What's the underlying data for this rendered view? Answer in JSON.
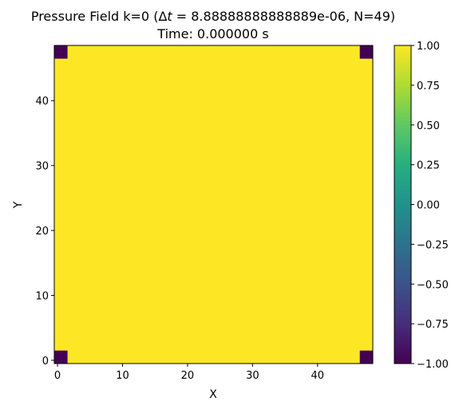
{
  "chart_data": {
    "type": "heatmap",
    "title_line1_prefix": "Pressure Field k=0 (",
    "title_line1_delta": "Δ",
    "title_line1_t": "t",
    "title_line1_suffix": " = 8.88888888888889e-06, N=49)",
    "title_line2": "Time: 0.000000 s",
    "xlabel": "X",
    "ylabel": "Y",
    "grid_n": 49,
    "xlim": [
      -0.5,
      48.5
    ],
    "ylim": [
      -0.5,
      48.5
    ],
    "xticks": [
      0,
      10,
      20,
      30,
      40
    ],
    "yticks": [
      0,
      10,
      20,
      30,
      40
    ],
    "fill_value": 1.0,
    "low_value": -1.0,
    "low_value_cells": [
      [
        0,
        0
      ],
      [
        1,
        0
      ],
      [
        0,
        1
      ],
      [
        1,
        1
      ],
      [
        47,
        0
      ],
      [
        48,
        0
      ],
      [
        47,
        1
      ],
      [
        48,
        1
      ],
      [
        0,
        47
      ],
      [
        1,
        47
      ],
      [
        0,
        48
      ],
      [
        1,
        48
      ],
      [
        47,
        47
      ],
      [
        48,
        47
      ],
      [
        47,
        48
      ],
      [
        48,
        48
      ]
    ],
    "colorbar": {
      "colormap": "viridis",
      "vmin": -1.0,
      "vmax": 1.0,
      "ticks": [
        -1.0,
        -0.75,
        -0.5,
        -0.25,
        0.0,
        0.25,
        0.5,
        0.75,
        1.0
      ],
      "tick_labels": [
        "−1.00",
        "−0.75",
        "−0.50",
        "−0.25",
        "0.00",
        "0.25",
        "0.50",
        "0.75",
        "1.00"
      ]
    },
    "colors": {
      "high": "#fde725",
      "low": "#440154"
    }
  }
}
